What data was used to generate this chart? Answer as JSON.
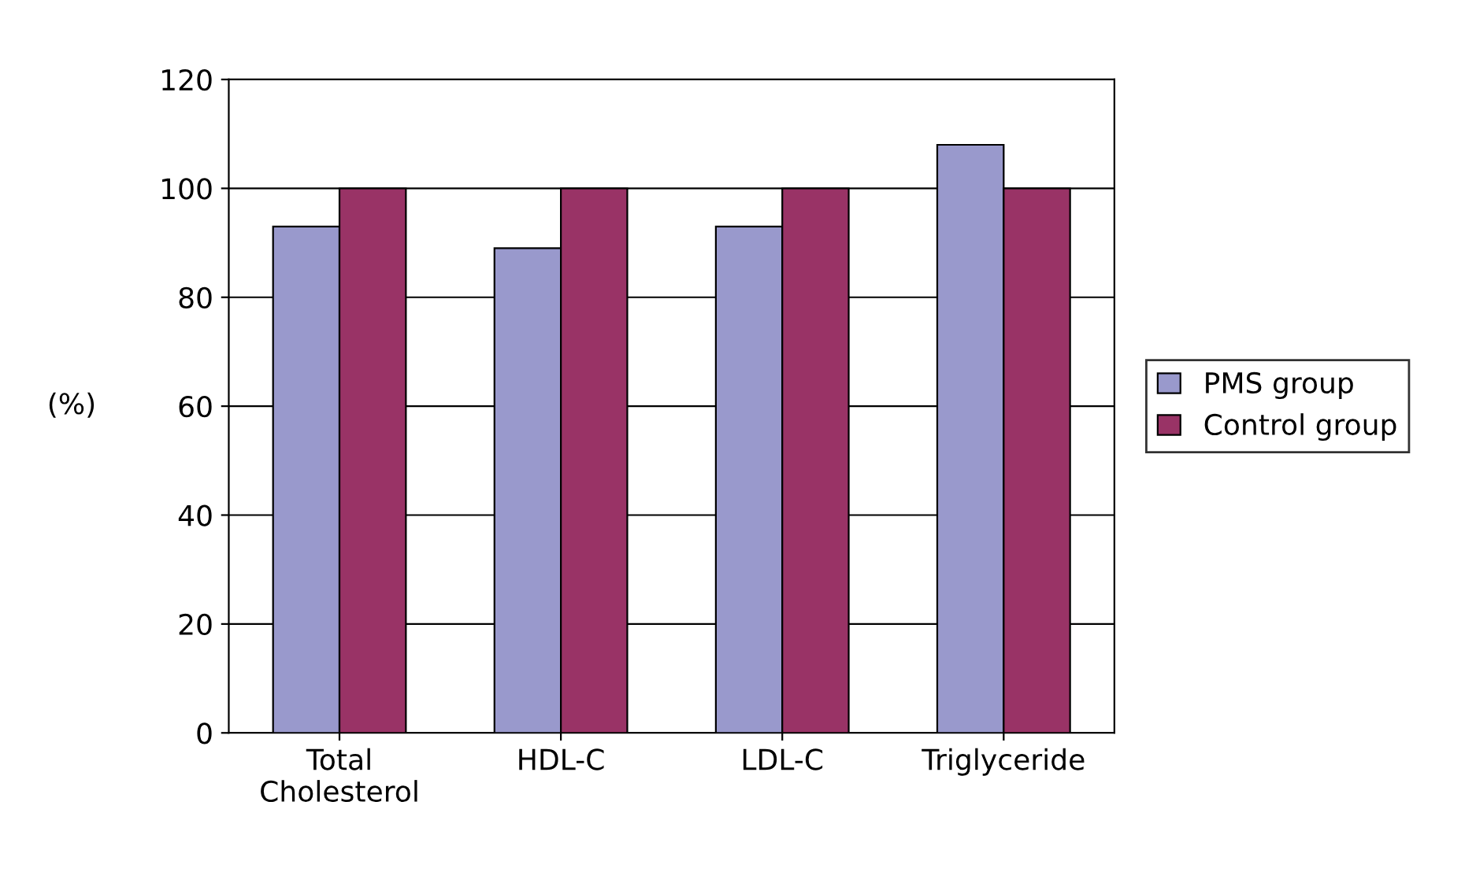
{
  "chart_data": {
    "type": "bar",
    "ylabel": "(%)",
    "categories": [
      "Total\nCholesterol",
      "HDL-C",
      "LDL-C",
      "Triglyceride"
    ],
    "series": [
      {
        "name": "PMS group",
        "color": "#9999cc",
        "values": [
          93,
          89,
          93,
          108
        ]
      },
      {
        "name": "Control group",
        "color": "#993366",
        "values": [
          100,
          100,
          100,
          100
        ]
      }
    ],
    "ylim": [
      0,
      120
    ],
    "yticks": [
      0,
      20,
      40,
      60,
      80,
      100,
      120
    ],
    "grid": "y",
    "legend": "right"
  }
}
